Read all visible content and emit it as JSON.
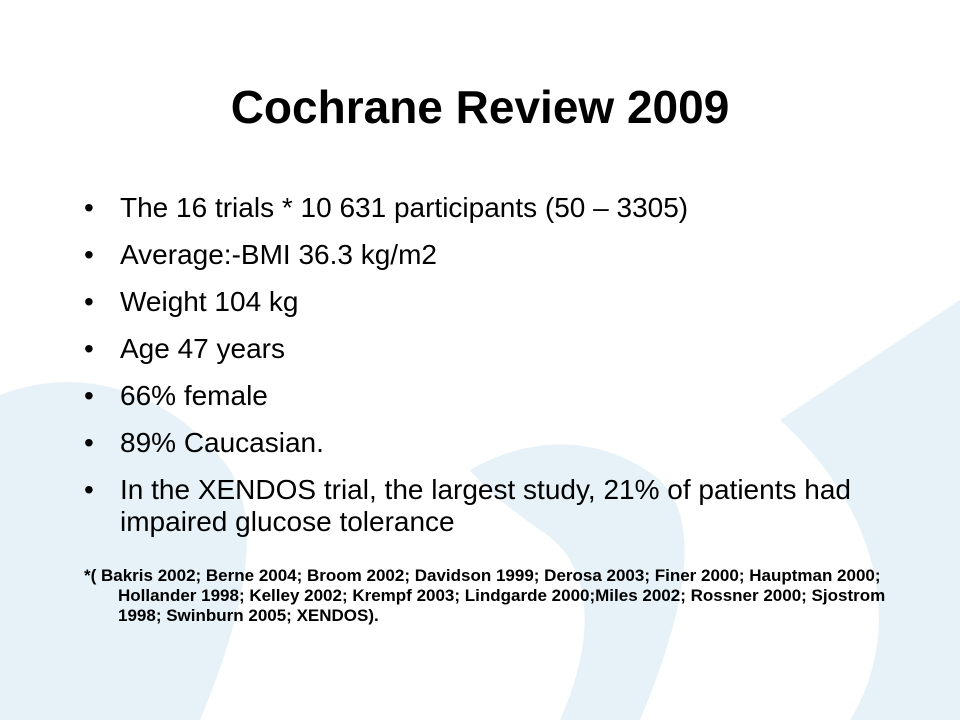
{
  "slide": {
    "title": "Cochrane Review 2009",
    "bullets": [
      "The 16 trials * 10 631 participants (50 – 3305)",
      "Average:-BMI 36.3 kg/m2",
      "Weight 104 kg",
      "Age 47 years",
      "66% female",
      "89% Caucasian.",
      "In the XENDOS trial, the largest study, 21% of patients had impaired glucose tolerance"
    ],
    "bullet_glyph": "•",
    "footnote": "*( Bakris 2002; Berne 2004; Broom 2002; Davidson 1999; Derosa 2003; Finer 2000; Hauptman 2000; Hollander 1998; Kelley 2002; Krempf 2003; Lindgarde 2000;Miles 2002; Rossner 2000; Sjostrom 1998; Swinburn 2005; XENDOS)."
  },
  "colors": {
    "background": "#ffffff",
    "decor_wave": "#e6f1f8",
    "text": "#000000"
  }
}
